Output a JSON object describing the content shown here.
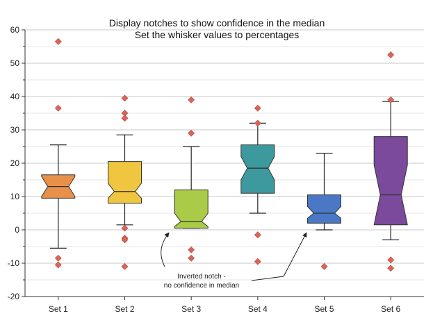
{
  "chart_data": {
    "type": "boxplot",
    "title_lines": [
      "Display notches to show confidence in the median",
      "Set the whisker values to percentages"
    ],
    "xlabel": "",
    "ylabel": "",
    "ylim": [
      -20,
      60
    ],
    "yticks": [
      -20,
      -10,
      0,
      10,
      20,
      30,
      40,
      50,
      60
    ],
    "grid": true,
    "categories": [
      "Set 1",
      "Set 2",
      "Set 3",
      "Set 4",
      "Set 5",
      "Set 6"
    ],
    "boxes": [
      {
        "name": "Set 1",
        "color": "#E8904A",
        "whisker_low": -5.5,
        "q1": 9.5,
        "median": 13,
        "q3": 16.5,
        "whisker_high": 25.5,
        "notch_low": 10,
        "notch_high": 16,
        "outliers": [
          56.5,
          36.5,
          -8.5,
          -10.5
        ]
      },
      {
        "name": "Set 2",
        "color": "#F0C640",
        "whisker_low": 1.5,
        "q1": 8,
        "median": 11.5,
        "q3": 20.5,
        "whisker_high": 28.5,
        "notch_low": 9.5,
        "notch_high": 14,
        "outliers": [
          39.5,
          35,
          33.5,
          0.5,
          -2.5,
          -3,
          -11
        ]
      },
      {
        "name": "Set 3",
        "color": "#A9CB47",
        "whisker_low": 0.5,
        "q1": 0.5,
        "median": 2.5,
        "q3": 12,
        "whisker_high": 25,
        "notch_low": 1,
        "notch_high": 5,
        "outliers": [
          39,
          29,
          -6,
          -8.5
        ]
      },
      {
        "name": "Set 4",
        "color": "#3C9A9E",
        "whisker_low": 5,
        "q1": 11,
        "median": 18.5,
        "q3": 25.5,
        "whisker_high": 32,
        "notch_low": 15,
        "notch_high": 22,
        "outliers": [
          36.5,
          32,
          -1.5,
          -9.5
        ]
      },
      {
        "name": "Set 5",
        "color": "#4A78C6",
        "whisker_low": 0,
        "q1": 2,
        "median": 5,
        "q3": 10.5,
        "whisker_high": 23,
        "notch_low": 3.5,
        "notch_high": 7,
        "outliers": [
          -11
        ]
      },
      {
        "name": "Set 6",
        "color": "#7B4A9C",
        "whisker_low": -3,
        "q1": 1.5,
        "median": 10.5,
        "q3": 28,
        "whisker_high": 38.5,
        "notch_low": 1.5,
        "notch_high": 19.5,
        "outliers": [
          52.5,
          39,
          -9,
          -11.5
        ]
      }
    ],
    "outlier_color": "#D9655A",
    "annotation": {
      "lines": [
        "Inverted notch -",
        "no confidence in median"
      ],
      "targets": [
        "Set 3",
        "Set 5"
      ]
    }
  }
}
